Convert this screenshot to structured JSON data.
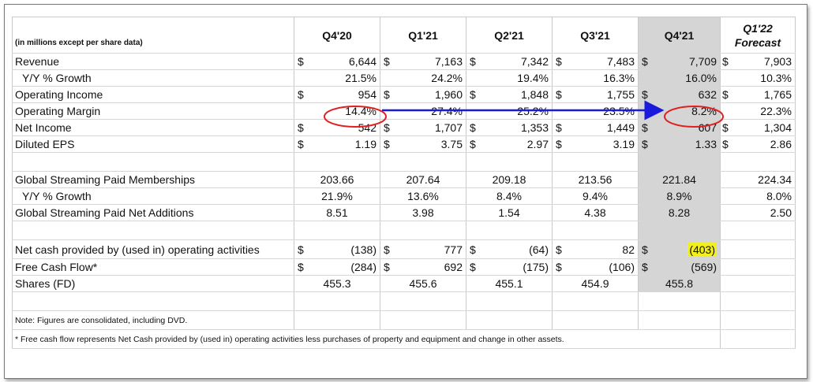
{
  "header": {
    "label": "(in millions except per share data)",
    "cols": [
      "Q4'20",
      "Q1'21",
      "Q2'21",
      "Q3'21",
      "Q4'21"
    ],
    "forecast_l1": "Q1'22",
    "forecast_l2": "Forecast"
  },
  "rows": {
    "revenue": {
      "label": "Revenue",
      "d": "$",
      "v": [
        "6,644",
        "7,163",
        "7,342",
        "7,483",
        "7,709",
        "7,903"
      ]
    },
    "rev_growth": {
      "label": "Y/Y % Growth",
      "v": [
        "21.5%",
        "24.2%",
        "19.4%",
        "16.3%",
        "16.0%",
        "10.3%"
      ]
    },
    "op_income": {
      "label": "Operating Income",
      "d": "$",
      "v": [
        "954",
        "1,960",
        "1,848",
        "1,755",
        "632",
        "1,765"
      ]
    },
    "op_margin": {
      "label": "Operating Margin",
      "v": [
        "14.4%",
        "27.4%",
        "25.2%",
        "23.5%",
        "8.2%",
        "22.3%"
      ]
    },
    "net_income": {
      "label": "Net Income",
      "d": "$",
      "v": [
        "542",
        "1,707",
        "1,353",
        "1,449",
        "607",
        "1,304"
      ]
    },
    "eps": {
      "label": "Diluted EPS",
      "d": "$",
      "v": [
        "1.19",
        "3.75",
        "2.97",
        "3.19",
        "1.33",
        "2.86"
      ]
    },
    "memberships": {
      "label": "Global Streaming Paid Memberships",
      "v": [
        "203.66",
        "207.64",
        "209.18",
        "213.56",
        "221.84",
        "224.34"
      ]
    },
    "mem_growth": {
      "label": "Y/Y % Growth",
      "v": [
        "21.9%",
        "13.6%",
        "8.4%",
        "9.4%",
        "8.9%",
        "8.0%"
      ]
    },
    "net_adds": {
      "label": "Global Streaming Paid Net Additions",
      "v": [
        "8.51",
        "3.98",
        "1.54",
        "4.38",
        "8.28",
        "2.50"
      ]
    },
    "net_cash": {
      "label": "Net cash provided by (used in) operating activities",
      "d": "$",
      "v": [
        "(138)",
        "777",
        "(64)",
        "82",
        "(403)"
      ]
    },
    "fcf": {
      "label": "Free Cash Flow*",
      "d": "$",
      "v": [
        "(284)",
        "692",
        "(175)",
        "(106)",
        "(569)"
      ]
    },
    "shares": {
      "label": "Shares (FD)",
      "v": [
        "455.3",
        "455.6",
        "455.1",
        "454.9",
        "455.8"
      ]
    }
  },
  "notes": {
    "n1": "Note: Figures are consolidated, including DVD.",
    "n2": "* Free cash flow represents Net Cash provided by (used in) operating activities less purchases of property and equipment and change in other assets."
  },
  "annotation_colors": {
    "ellipse": "#e02020",
    "arrow": "#1a1adc",
    "highlight": "#f2ef1e",
    "shaded_column": "#d5d5d5"
  }
}
